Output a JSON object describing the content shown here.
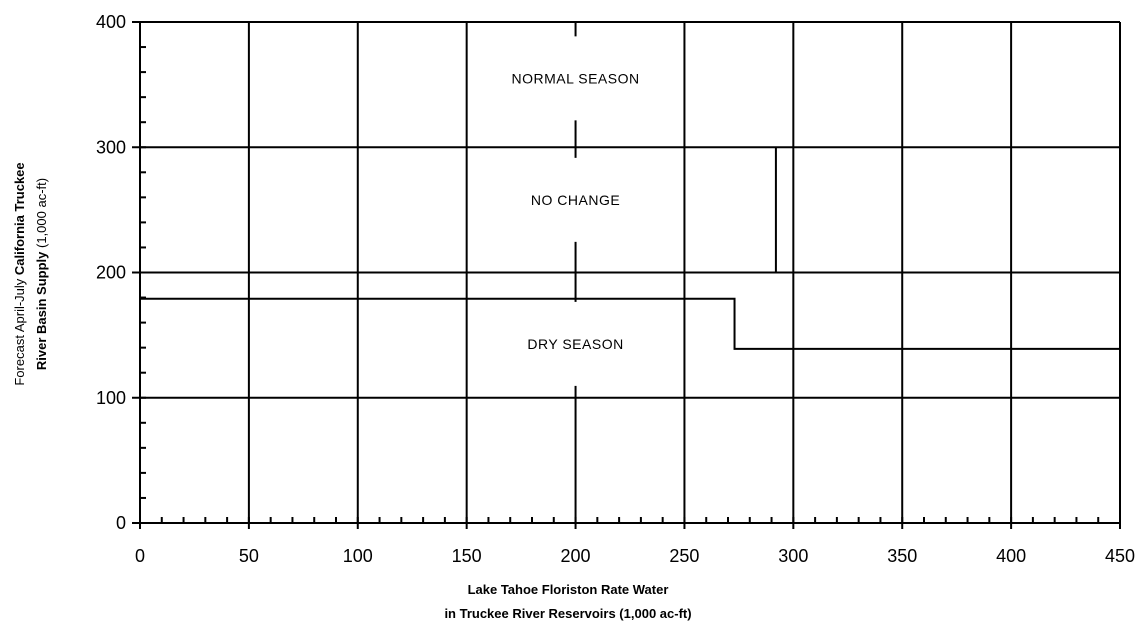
{
  "chart_data": {
    "type": "line",
    "xlabel_line1": "Lake Tahoe Floriston Rate Water",
    "xlabel_line2": "in Truckee River Reservoirs  (1,000 ac-ft)",
    "ylabel_line1_normal": "Forecast April-July ",
    "ylabel_line1_bold": "California Truckee",
    "ylabel_line2_bold": "River Basin Supply",
    "ylabel_line2_normal": "   (1,000 ac-ft)",
    "xlim": [
      0,
      450
    ],
    "ylim": [
      0,
      400
    ],
    "x_ticks": [
      0,
      50,
      100,
      150,
      200,
      250,
      300,
      350,
      400,
      450
    ],
    "x_tick_labels": [
      "0",
      "50",
      "100",
      "150",
      "200",
      "250",
      "300",
      "350",
      "400",
      "450"
    ],
    "y_ticks": [
      0,
      100,
      200,
      300,
      400
    ],
    "y_tick_labels": [
      "0",
      "100",
      "200",
      "300",
      "400"
    ],
    "grid": true,
    "regions": [
      {
        "label": "NORMAL SEASON",
        "x": 200,
        "y": 355
      },
      {
        "label": "NO CHANGE",
        "x": 200,
        "y": 258
      },
      {
        "label": "DRY SEASON",
        "x": 200,
        "y": 143
      }
    ],
    "boundaries": [
      {
        "name": "normal-season-boundary",
        "points": [
          [
            292,
            200
          ],
          [
            292,
            300
          ]
        ]
      },
      {
        "name": "dry-season-boundary",
        "points": [
          [
            0,
            179
          ],
          [
            273,
            179
          ],
          [
            273,
            139
          ],
          [
            450,
            139
          ]
        ]
      }
    ]
  }
}
